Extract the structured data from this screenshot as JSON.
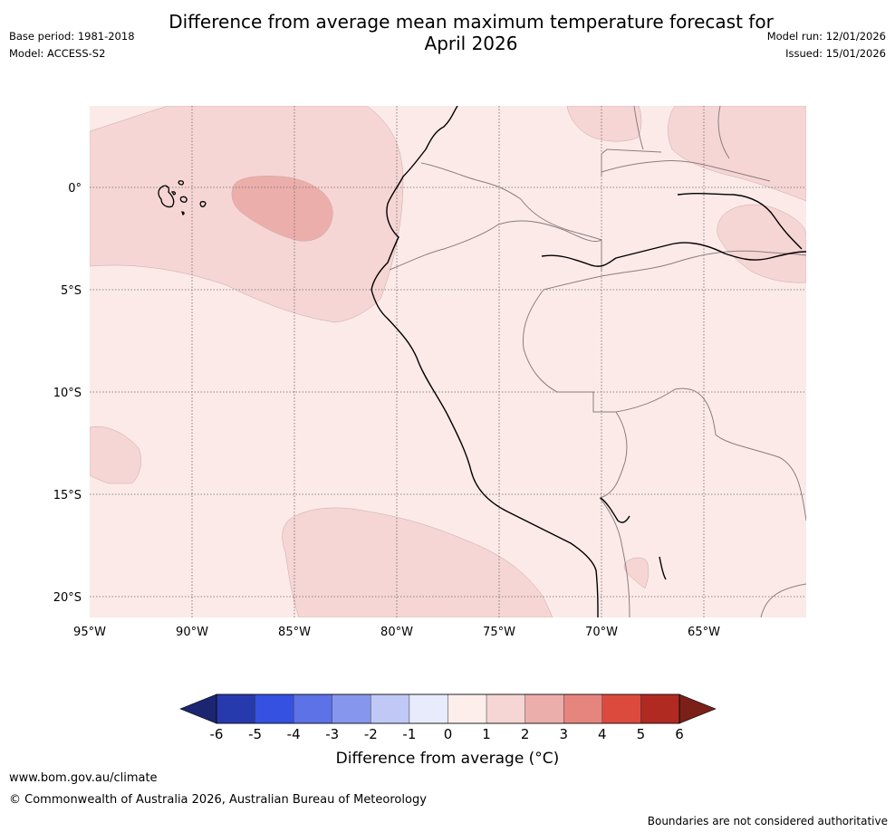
{
  "header": {
    "title_line1": "Difference from average mean maximum temperature forecast for",
    "title_line2": "April 2026",
    "base_period": "Base period: 1981-2018",
    "model": "Model: ACCESS-S2",
    "model_run": "Model run: 12/01/2026",
    "issued": "Issued: 15/01/2026"
  },
  "map": {
    "x_ticks": [
      "95°W",
      "90°W",
      "85°W",
      "80°W",
      "75°W",
      "70°W",
      "65°W"
    ],
    "y_ticks": [
      "0°",
      "5°S",
      "10°S",
      "15°S",
      "20°S"
    ],
    "colors": {
      "ocean_background": "#fbeae8",
      "anomaly_1_2": "#f5d6d4",
      "anomaly_2_3": "#ecaeab",
      "coastline": "#000000",
      "border": "#8a7d80"
    }
  },
  "colorbar": {
    "label": "Difference from average (°C)",
    "ticks": [
      "-6",
      "-5",
      "-4",
      "-3",
      "-2",
      "-1",
      "0",
      "1",
      "2",
      "3",
      "4",
      "5",
      "6"
    ],
    "colors": [
      "#273aad",
      "#3451e1",
      "#5c72e6",
      "#8596ec",
      "#c0c9f5",
      "#e8ebfb",
      "#fdeeec",
      "#f5d6d4",
      "#ecaeab",
      "#e6857e",
      "#dc4a3e",
      "#b02a22"
    ],
    "extend_low_color": "#1c2670",
    "extend_high_color": "#7a2018"
  },
  "footer": {
    "website": "www.bom.gov.au/climate",
    "copyright": "© Commonwealth of Australia 2026, Australian Bureau of Meteorology",
    "disclaimer": "Boundaries are not considered authoritative"
  }
}
